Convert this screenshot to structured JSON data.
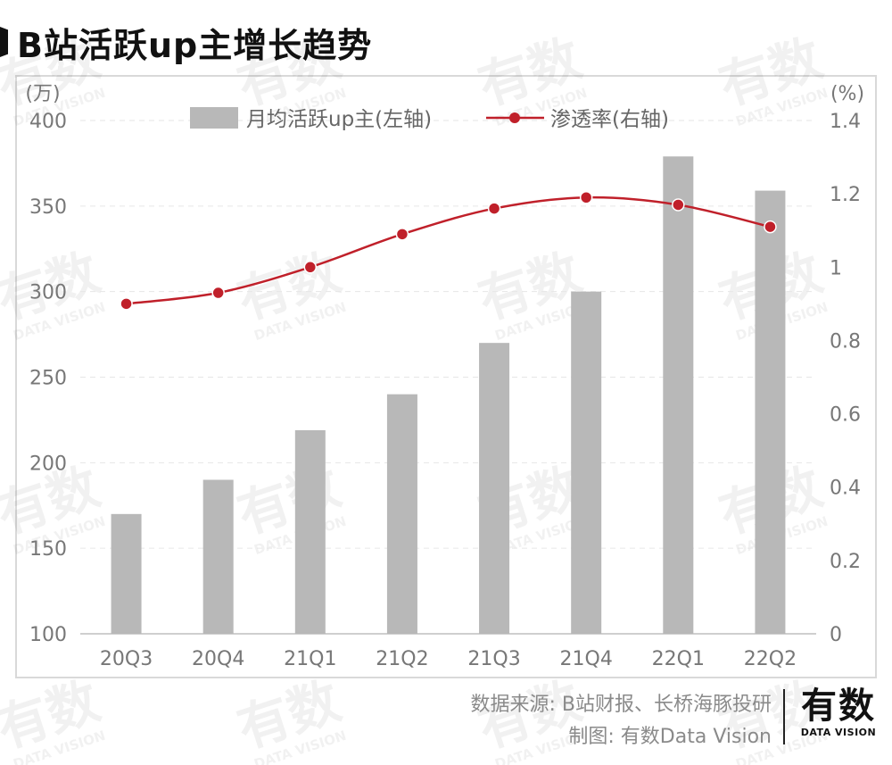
{
  "title": "B站活跃up主增长趋势",
  "chart_data": {
    "type": "bar+line",
    "categories": [
      "20Q3",
      "20Q4",
      "21Q1",
      "21Q2",
      "21Q3",
      "21Q4",
      "22Q1",
      "22Q2"
    ],
    "series": [
      {
        "name": "月均活跃up主(左轴)",
        "kind": "bar",
        "axis": "left",
        "color": "#b8b8b8",
        "values": [
          170,
          190,
          219,
          240,
          270,
          300,
          379,
          359
        ]
      },
      {
        "name": "渗透率(右轴)",
        "kind": "line",
        "axis": "right",
        "color": "#c0202a",
        "values": [
          0.9,
          0.93,
          1.0,
          1.09,
          1.16,
          1.19,
          1.17,
          1.11
        ]
      }
    ],
    "left_axis": {
      "unit": "(万)",
      "ylim": [
        100,
        400
      ],
      "ticks": [
        100,
        150,
        200,
        250,
        300,
        350,
        400
      ]
    },
    "right_axis": {
      "unit": "(%)",
      "ylim": [
        0,
        1.4
      ],
      "ticks": [
        0,
        0.2,
        0.4,
        0.6,
        0.8,
        1,
        1.2,
        1.4
      ],
      "tick_labels": [
        "0",
        "0.2",
        "0.4",
        "0.6",
        "0.8",
        "1",
        "1.2",
        "1.4"
      ]
    },
    "legend": {
      "position": "top-center",
      "labels": [
        "月均活跃up主(左轴)",
        "渗透率(右轴)"
      ]
    },
    "grid": true
  },
  "footer": {
    "source": "数据来源: B站财报、长桥海豚投研",
    "credit": "制图: 有数Data Vision"
  },
  "logo": {
    "main": "有数",
    "sub": "DATA VISION"
  },
  "watermark": {
    "main": "有数",
    "sub": "DATA VISION"
  }
}
